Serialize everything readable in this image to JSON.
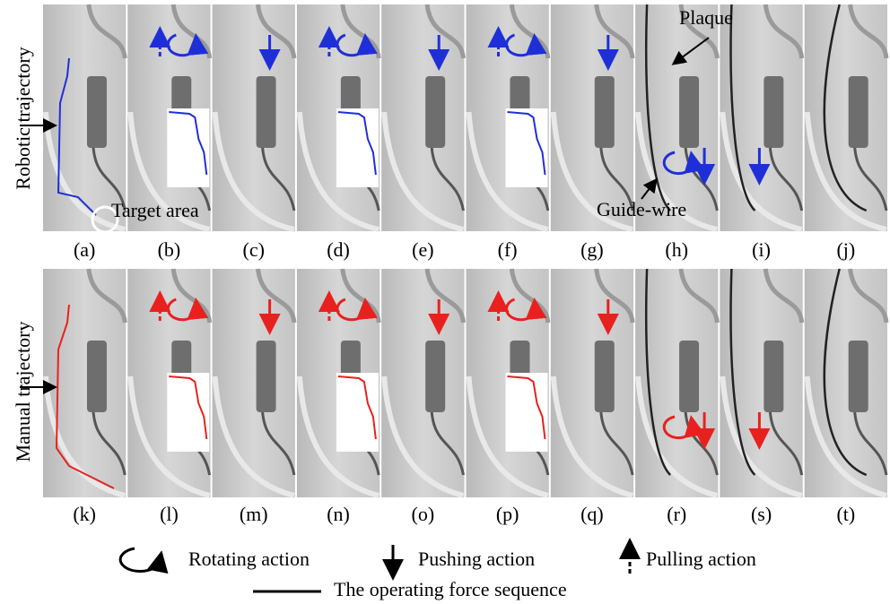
{
  "row_labels": [
    "Robotic trajectory",
    "Manual trajectory"
  ],
  "panels": [
    [
      "(a)",
      "(b)",
      "(c)",
      "(d)",
      "(e)",
      "(f)",
      "(g)",
      "(h)",
      "(i)",
      "(j)"
    ],
    [
      "(k)",
      "(l)",
      "(m)",
      "(n)",
      "(o)",
      "(p)",
      "(q)",
      "(r)",
      "(s)",
      "(t)"
    ]
  ],
  "annotations": {
    "trajectory_robotic": "",
    "target_area": "Target area",
    "plaque": "Plaque",
    "guide_wire": "Guide-wire"
  },
  "legend": {
    "rotating": "Rotating action",
    "pushing": "Pushing action",
    "pulling": "Pulling action",
    "force_sequence": "The operating force sequence"
  }
}
